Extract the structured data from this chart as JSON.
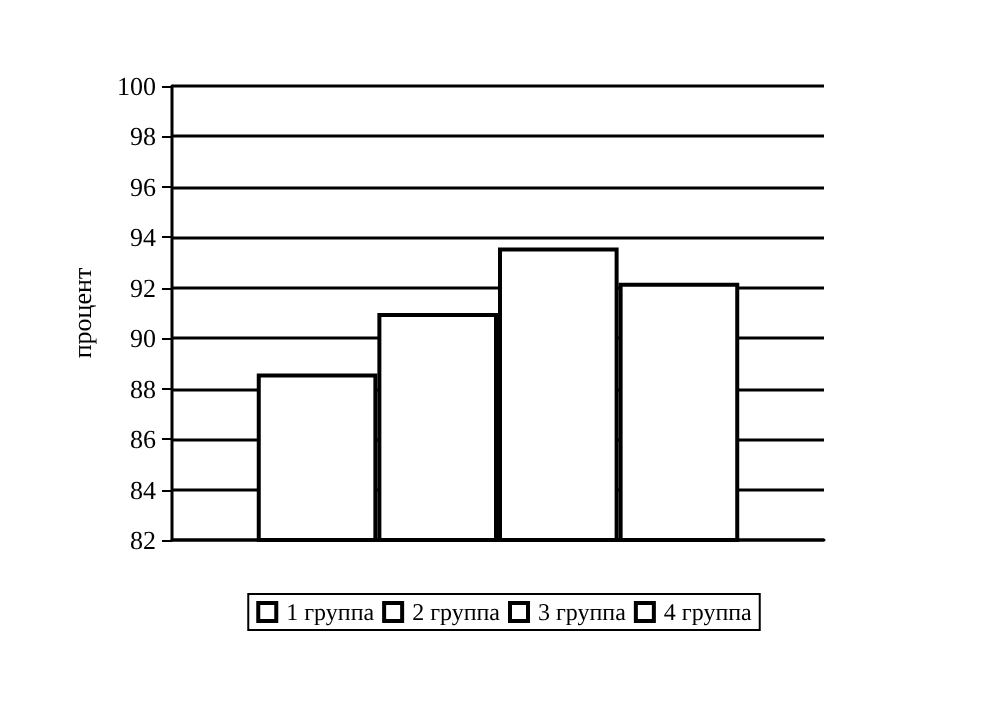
{
  "chart_data": {
    "type": "bar",
    "ylabel": "процент",
    "categories": [
      null
    ],
    "series": [
      {
        "name": "1 группа",
        "color": "#ffffff",
        "values": [
          88.6
        ]
      },
      {
        "name": "2 группа",
        "color": "#ffffff",
        "values": [
          91.0
        ]
      },
      {
        "name": "3 группа",
        "color": "#ffffff",
        "values": [
          93.6
        ]
      },
      {
        "name": "4 группа",
        "color": "#ffffff",
        "values": [
          92.2
        ]
      }
    ],
    "ylim": [
      82,
      100
    ],
    "yticks": [
      82,
      84,
      86,
      88,
      90,
      92,
      94,
      96,
      98,
      100
    ],
    "grid": "y",
    "legend": "bottom"
  }
}
